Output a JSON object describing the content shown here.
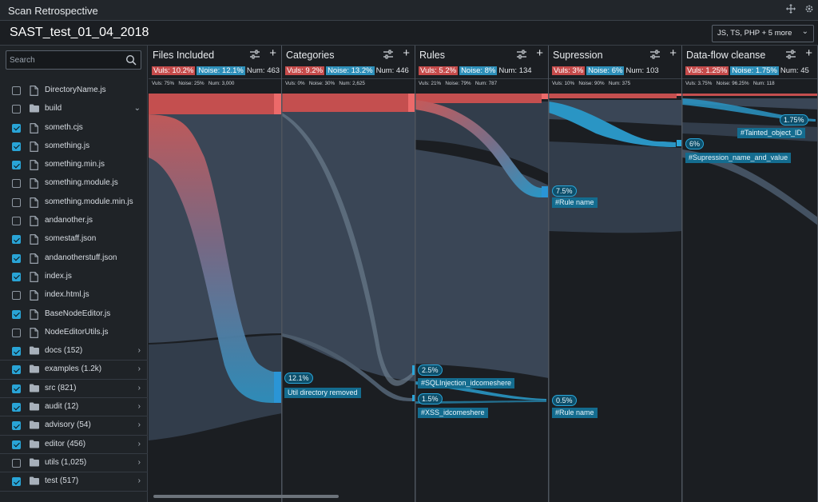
{
  "app": {
    "title": "Scan Retrospective",
    "icon_move": "move-icon",
    "icon_settings": "gear-icon"
  },
  "header": {
    "project": "SAST_test_01_04_2018",
    "lang_select": "JS, TS, PHP + 5 more"
  },
  "search": {
    "placeholder": "Search"
  },
  "tree": [
    {
      "label": "DirectoryName.js",
      "check": "none",
      "icon": "file",
      "arrow": ""
    },
    {
      "label": "build",
      "check": "off",
      "icon": "folder",
      "arrow": "⌄"
    },
    {
      "label": "someth.cjs",
      "check": "on",
      "icon": "file",
      "arrow": ""
    },
    {
      "label": "something.js",
      "check": "on",
      "icon": "file",
      "arrow": ""
    },
    {
      "label": "something.min.js",
      "check": "on",
      "icon": "file",
      "arrow": ""
    },
    {
      "label": "something.module.js",
      "check": "off",
      "icon": "file",
      "arrow": ""
    },
    {
      "label": "something.module.min.js",
      "check": "off",
      "icon": "file",
      "arrow": ""
    },
    {
      "label": "andanother.js",
      "check": "off",
      "icon": "file",
      "arrow": ""
    },
    {
      "label": "somestaff.json",
      "check": "on",
      "icon": "file",
      "arrow": ""
    },
    {
      "label": "andanotherstuff.json",
      "check": "on",
      "icon": "file",
      "arrow": ""
    },
    {
      "label": "index.js",
      "check": "on",
      "icon": "file",
      "arrow": ""
    },
    {
      "label": "index.html.js",
      "check": "off",
      "icon": "file",
      "arrow": ""
    },
    {
      "label": "BaseNodeEditor.js",
      "check": "on",
      "icon": "file",
      "arrow": ""
    },
    {
      "label": "NodeEditorUtils.js",
      "check": "off",
      "icon": "file",
      "arrow": ""
    },
    {
      "label": "docs (152)",
      "check": "on",
      "icon": "folder",
      "arrow": "›"
    },
    {
      "label": "examples (1.2k)",
      "check": "on",
      "icon": "folder",
      "arrow": "›"
    },
    {
      "label": "src (821)",
      "check": "on",
      "icon": "folder",
      "arrow": "›"
    },
    {
      "label": "audit (12)",
      "check": "on",
      "icon": "folder",
      "arrow": "›"
    },
    {
      "label": "advisory (54)",
      "check": "on",
      "icon": "folder",
      "arrow": "›"
    },
    {
      "label": "editor (456)",
      "check": "on",
      "icon": "folder",
      "arrow": "›"
    },
    {
      "label": "utils (1,025)",
      "check": "off",
      "icon": "folder",
      "arrow": "›"
    },
    {
      "label": "test (517)",
      "check": "on",
      "icon": "folder",
      "arrow": "›"
    }
  ],
  "columns": [
    {
      "title": "Files Included",
      "vuls": "Vuls: 10.2%",
      "noise": "Noise: 12.1%",
      "num": "Num: 463",
      "sub_vuls": "Vuls: 75%",
      "sub_noise": "Noise: 25%",
      "sub_num": "Num: 3,000"
    },
    {
      "title": "Categories",
      "vuls": "Vuls: 9.2%",
      "noise": "Noise: 13.2%",
      "num": "Num: 446",
      "sub_vuls": "Vuls: 0%",
      "sub_noise": "Noise: 30%",
      "sub_num": "Num: 2,625"
    },
    {
      "title": "Rules",
      "vuls": "Vuls: 5.2%",
      "noise": "Noise: 8%",
      "num": "Num: 134",
      "sub_vuls": "Vuls: 21%",
      "sub_noise": "Noise: 79%",
      "sub_num": "Num: 787"
    },
    {
      "title": "Supression",
      "vuls": "Vuls: 3%",
      "noise": "Noise: 6%",
      "num": "Num: 103",
      "sub_vuls": "Vuls: 10%",
      "sub_noise": "Noise: 90%",
      "sub_num": "Num: 375"
    },
    {
      "title": "Data-flow cleanse",
      "vuls": "Vuls: 1.25%",
      "noise": "Noise: 1.75%",
      "num": "Num: 45",
      "sub_vuls": "Vuls: 3.75%",
      "sub_noise": "Noise: 96.25%",
      "sub_num": "Num: 118"
    }
  ],
  "nodes": [
    {
      "pct": "12.1%",
      "tag": "Util directory removed"
    },
    {
      "pct": "2.5%",
      "tag": "#SQLInjection_idcomeshere"
    },
    {
      "pct": "1.5%",
      "tag": "#XSS_idcomeshere"
    },
    {
      "pct": "7.5%",
      "tag": "#Rule name"
    },
    {
      "pct": "0.5%",
      "tag": "#Rule name"
    },
    {
      "pct": "6%",
      "tag": "#Supression_name_and_value"
    },
    {
      "pct": "1.75%",
      "tag": "#Tainted_object_ID"
    }
  ],
  "colors": {
    "vuls": "#c54b4b",
    "noise": "#2d8fb9",
    "flow_bg": "#3a4656",
    "flow_vul": "#d65a5a",
    "accent": "#29a4d6"
  }
}
